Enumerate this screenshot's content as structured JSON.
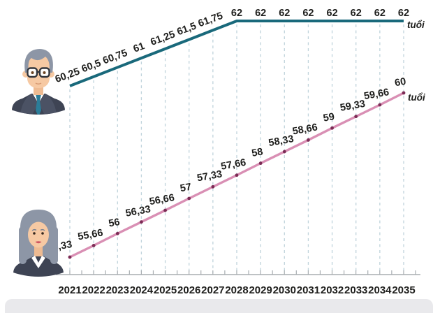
{
  "chart_data": {
    "type": "line",
    "title": "",
    "xlabel": "",
    "ylabel": "",
    "years": [
      "2021",
      "2022",
      "2023",
      "2024",
      "2025",
      "2026",
      "2027",
      "2028",
      "2029",
      "2030",
      "2031",
      "2032",
      "2033",
      "2034",
      "2035"
    ],
    "series": [
      {
        "id": "men",
        "name": "upper-line-male-retirement-age",
        "color": "#19697b",
        "unit_label": "tuổi",
        "marker": "none",
        "values": [
          60.25,
          60.5,
          60.75,
          61,
          61.25,
          61.5,
          61.75,
          62,
          62,
          62,
          62,
          62,
          62,
          62,
          62
        ],
        "labels": [
          "60,25",
          "60,5",
          "60,75",
          "61",
          "61,25",
          "61,5",
          "61,75",
          "62",
          "62",
          "62",
          "62",
          "62",
          "62",
          "62",
          "62"
        ]
      },
      {
        "id": "women",
        "name": "lower-line-female-retirement-age",
        "color": "#d98fb4",
        "marker": "dot",
        "marker_color": "#7c2b55",
        "unit_label": "tuổi",
        "values": [
          55.33,
          55.66,
          56,
          56.33,
          56.66,
          57,
          57.33,
          57.66,
          58,
          58.33,
          58.66,
          59,
          59.33,
          59.66,
          60
        ],
        "labels": [
          "55,33",
          "55,66",
          "56",
          "56,33",
          "56,66",
          "57",
          "57,33",
          "57,66",
          "58",
          "58,33",
          "58,66",
          "59",
          "59,33",
          "59,66",
          "60"
        ]
      }
    ],
    "grid": "vertical-dashed",
    "grid_color": "#bfd3db",
    "axis_color": "#a8adb1",
    "text_color": "#1e1e1c",
    "footer_strip_color": "#e9e9ec"
  },
  "icons": {
    "man_avatar": "man-with-glasses-bust-icon",
    "woman_avatar": "gray-haired-woman-bust-icon"
  }
}
